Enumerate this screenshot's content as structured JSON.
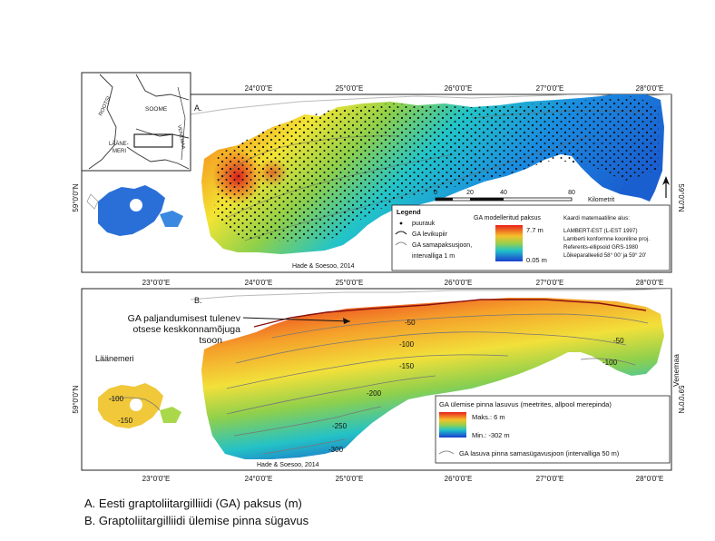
{
  "panel_a": {
    "label": "A.",
    "lon_labels": [
      "24°0'0\"E",
      "25°0'0\"E",
      "26°0'0\"E",
      "27°0'0\"E",
      "28°0'0\"E"
    ],
    "lat_label": "59°0'0\"N",
    "lat_label_right": "59°0'0\"N",
    "credit": "Hade & Soesoo, 2014",
    "scalebar": {
      "ticks": [
        "0",
        "20",
        "40",
        "80"
      ],
      "unit": "Kilometrit"
    },
    "legend": {
      "title": "Legend",
      "items": [
        "puurauk",
        "GA levikupiir",
        "GA samapaksusjoon,",
        "intervalliga 1 m"
      ],
      "colorbar_title": "GA modelleritud paksus",
      "max": "7.7 m",
      "min": "0.05 m",
      "projection_lines": [
        "Kaardi matemaatiline alus:",
        "LAMBERT-EST (L-EST 1997)",
        "Lamberti konformne kooniline proj.",
        "Referents-ellipsoid GRS-1980",
        "Lõikeparalleelid 58° 00' ja 59° 20'"
      ]
    },
    "inset": {
      "labels": [
        "ROOTSI",
        "SOOME",
        "LÄÄNE-",
        "MERI",
        "VENEMAA"
      ]
    }
  },
  "panel_b": {
    "label": "B.",
    "lon_labels": [
      "23°0'0\"E",
      "24°0'0\"E",
      "25°0'0\"E",
      "26°0'0\"E",
      "27°0'0\"E",
      "28°0'0\"E"
    ],
    "lat_label": "59°0'0\"N",
    "lat_label_right": "59°0'0\"N",
    "credit": "Hade & Soesoo, 2014",
    "sea_label": "Läänemeri",
    "russia_label": "Venemaa",
    "annotation": [
      "GA paljandumisest tulenev",
      "otsese keskkonnamõjuga",
      "tsoon"
    ],
    "contour_labels": [
      "-50",
      "-50",
      "-100",
      "-100",
      "-150",
      "-200",
      "-250",
      "-300",
      "-100",
      "-150"
    ],
    "legend": {
      "title": "GA ülemise pinna lasuvus (meetrites, allpool merepinda)",
      "max": "Maks.: 6 m",
      "min": "Min.: -302 m",
      "line_label": "GA lasuva pinna samasügavusjoon (intervalliga 50 m)"
    }
  },
  "bottom_lon_labels": [
    "23°0'0\"E",
    "24°0'0\"E",
    "25°0'0\"E",
    "26°0'0\"E",
    "27°0'0\"E",
    "28°0'0\"E"
  ],
  "captions": [
    "A. Eesti graptoliitargilliidi (GA) paksus (m)",
    "B. Graptoliitargilliidi ülemise pinna sügavus"
  ]
}
